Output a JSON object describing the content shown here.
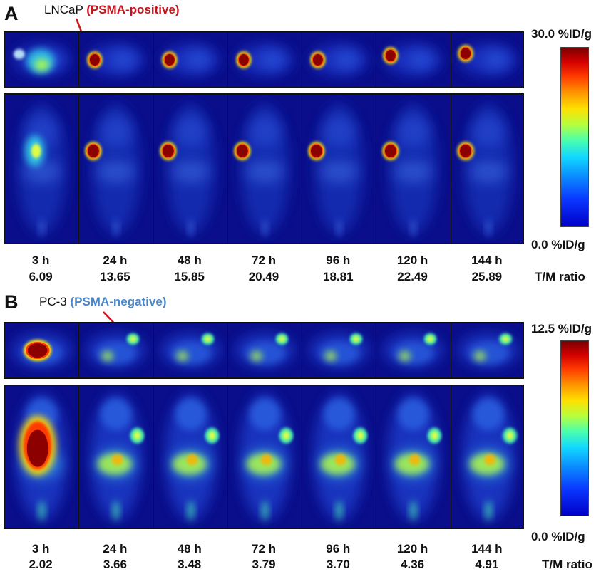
{
  "panel_a": {
    "letter": "A",
    "cell_line": "LNCaP ",
    "cell_line_suffix": "(PSMA-positive)",
    "suffix_color": "#c8141e",
    "scale_max": "30.0 %ID/g",
    "scale_min": "0.0 %ID/g",
    "ratio_header": "T/M ratio",
    "times": [
      "3 h",
      "24 h",
      "48 h",
      "72 h",
      "96 h",
      "120 h",
      "144 h"
    ],
    "tm_ratios": [
      "6.09",
      "13.65",
      "15.85",
      "20.49",
      "18.81",
      "22.49",
      "25.89"
    ],
    "arrow_color": "#d0141c"
  },
  "panel_b": {
    "letter": "B",
    "cell_line": "PC-3 ",
    "cell_line_suffix": "(PSMA-negative)",
    "suffix_color": "#4a86c8",
    "scale_max": "12.5 %ID/g",
    "scale_min": "0.0 %ID/g",
    "ratio_header": "T/M ratio",
    "times": [
      "3 h",
      "24 h",
      "48 h",
      "72 h",
      "96 h",
      "120 h",
      "144 h"
    ],
    "tm_ratios": [
      "2.02",
      "3.66",
      "3.48",
      "3.79",
      "3.70",
      "4.36",
      "4.91"
    ],
    "arrow_color": "#d0141c"
  }
}
